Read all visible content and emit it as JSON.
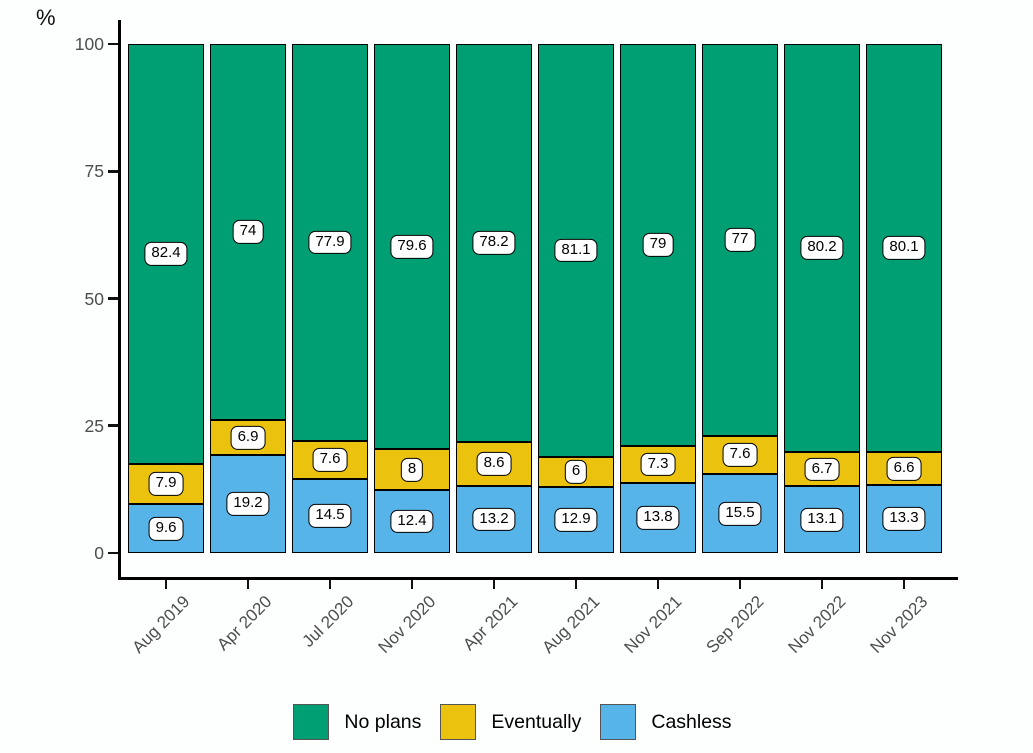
{
  "chart_data": {
    "type": "bar",
    "stacked": true,
    "title": "",
    "xlabel": "",
    "ylabel": "%",
    "ylim": [
      0,
      100
    ],
    "y_ticks": [
      0,
      25,
      50,
      75,
      100
    ],
    "grid": false,
    "legend_position": "bottom",
    "bar_value_labels": true,
    "categories": [
      "Aug 2019",
      "Apr 2020",
      "Jul 2020",
      "Nov 2020",
      "Apr 2021",
      "Aug 2021",
      "Nov 2021",
      "Sep 2022",
      "Nov 2022",
      "Nov 2023"
    ],
    "series": [
      {
        "name": "No plans",
        "color": "#009E73",
        "values": [
          82.4,
          74,
          77.9,
          79.6,
          78.2,
          81.1,
          79,
          77,
          80.2,
          80.1
        ]
      },
      {
        "name": "Eventually",
        "color": "#EBC30F",
        "values": [
          7.9,
          6.9,
          7.6,
          8,
          8.6,
          6,
          7.3,
          7.6,
          6.7,
          6.6
        ]
      },
      {
        "name": "Cashless",
        "color": "#56B4E9",
        "values": [
          9.6,
          19.2,
          14.5,
          12.4,
          13.2,
          12.9,
          13.8,
          15.5,
          13.1,
          13.3
        ]
      }
    ],
    "colors": {
      "axis": "#000000",
      "tick_label": "#4d4d4d",
      "label_box_bg": "#ffffff",
      "label_box_border": "#000000"
    }
  }
}
